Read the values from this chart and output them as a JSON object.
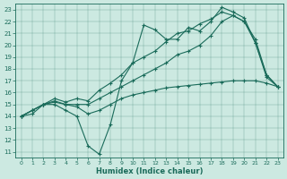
{
  "xlabel": "Humidex (Indice chaleur)",
  "bg_color": "#cce9e1",
  "line_color": "#1a6b5a",
  "xlim": [
    -0.5,
    23.5
  ],
  "ylim": [
    10.5,
    23.5
  ],
  "yticks": [
    11,
    12,
    13,
    14,
    15,
    16,
    17,
    18,
    19,
    20,
    21,
    22,
    23
  ],
  "xticks": [
    0,
    1,
    2,
    3,
    4,
    5,
    6,
    7,
    8,
    9,
    10,
    11,
    12,
    13,
    14,
    15,
    16,
    17,
    18,
    19,
    20,
    21,
    22,
    23
  ],
  "lines": [
    {
      "x": [
        0,
        1,
        2,
        3,
        4,
        5,
        6,
        7,
        8,
        9,
        10,
        11,
        12,
        13,
        14,
        15,
        16,
        17,
        18,
        19,
        20,
        21,
        22,
        23
      ],
      "y": [
        14,
        14.5,
        15,
        15,
        14.5,
        14,
        11.5,
        10.8,
        13.3,
        17,
        18.5,
        21.7,
        21.3,
        20.5,
        20.5,
        21.5,
        21.2,
        22.0,
        23.2,
        22.8,
        22.3,
        20.2,
        17.3,
        16.5
      ]
    },
    {
      "x": [
        0,
        1,
        2,
        3,
        4,
        5,
        6,
        7,
        8,
        9,
        10,
        11,
        12,
        13,
        14,
        15,
        16,
        17,
        18,
        19,
        20,
        21,
        22,
        23
      ],
      "y": [
        14,
        14.5,
        15.0,
        15.2,
        15.0,
        15.0,
        15.0,
        15.5,
        16.0,
        16.5,
        17.0,
        17.5,
        18.0,
        18.5,
        19.2,
        19.5,
        20.0,
        20.8,
        22.0,
        22.5,
        22.0,
        20.5,
        17.5,
        16.5
      ]
    },
    {
      "x": [
        0,
        1,
        2,
        3,
        4,
        5,
        6,
        7,
        8,
        9,
        10,
        11,
        12,
        13,
        14,
        15,
        16,
        17,
        18,
        19,
        20,
        21,
        22,
        23
      ],
      "y": [
        14,
        14.5,
        15.0,
        15.5,
        15.2,
        15.5,
        15.3,
        16.2,
        16.8,
        17.5,
        18.5,
        19.0,
        19.5,
        20.3,
        21.0,
        21.2,
        21.8,
        22.2,
        22.8,
        22.5,
        22.0,
        20.2,
        17.5,
        16.5
      ]
    },
    {
      "x": [
        0,
        1,
        2,
        3,
        4,
        5,
        6,
        7,
        8,
        9,
        10,
        11,
        12,
        13,
        14,
        15,
        16,
        17,
        18,
        19,
        20,
        21,
        22,
        23
      ],
      "y": [
        14,
        14.2,
        15.0,
        15.3,
        15.0,
        14.8,
        14.2,
        14.5,
        15.0,
        15.5,
        15.8,
        16.0,
        16.2,
        16.4,
        16.5,
        16.6,
        16.7,
        16.8,
        16.9,
        17.0,
        17.0,
        17.0,
        16.8,
        16.5
      ]
    }
  ]
}
